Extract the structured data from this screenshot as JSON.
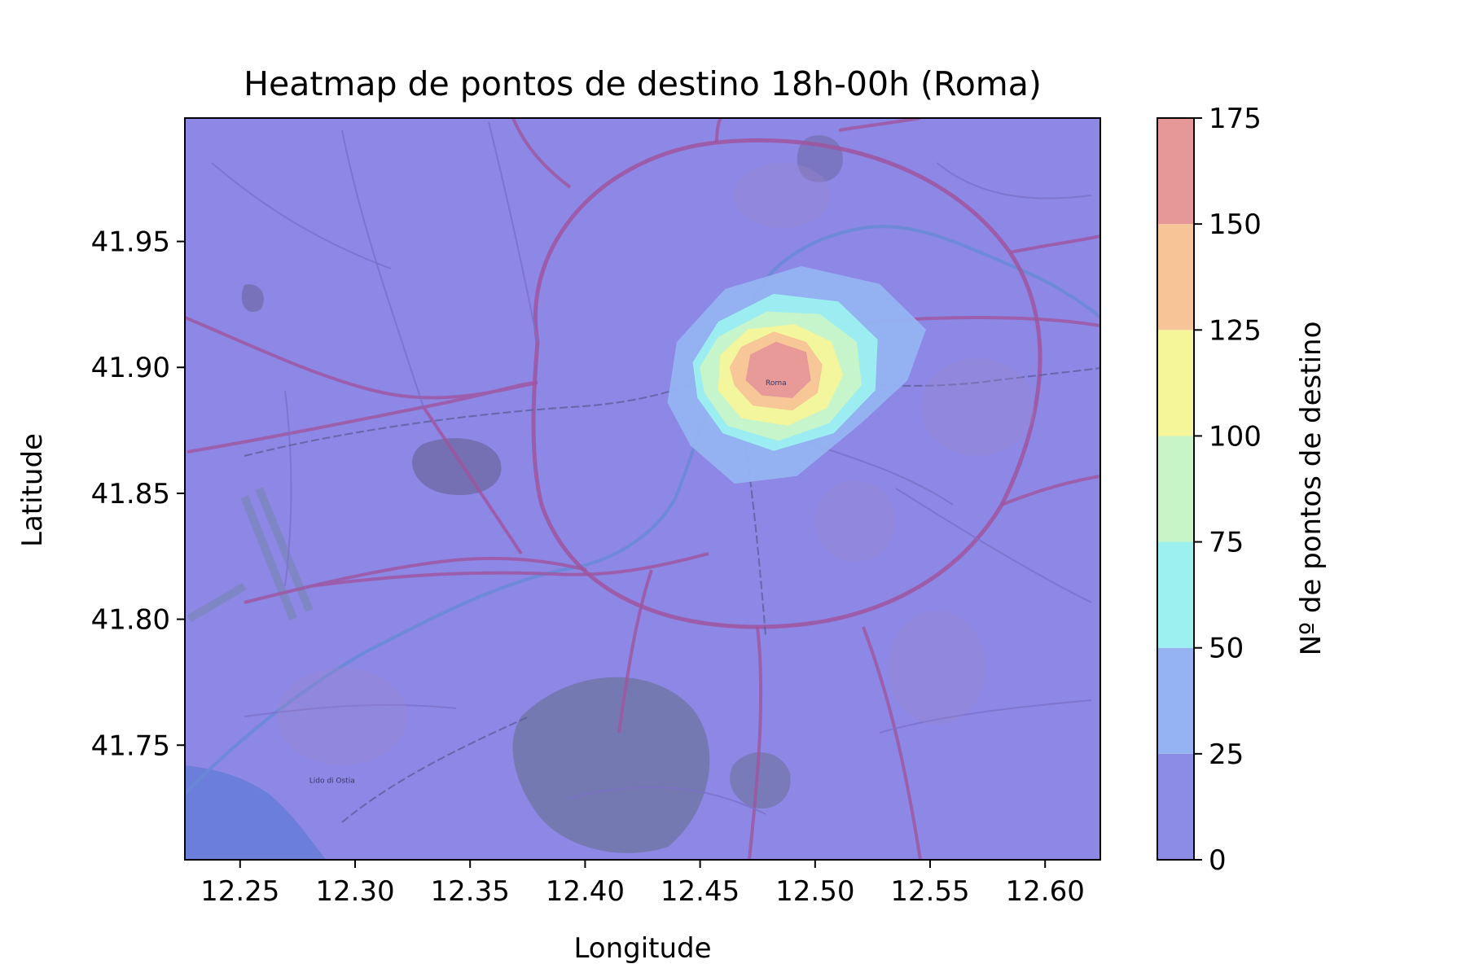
{
  "chart_data": {
    "type": "heatmap",
    "title": "Heatmap de pontos de destino 18h-00h (Roma)",
    "xlabel": "Longitude",
    "ylabel": "Latitude",
    "xlim": [
      12.226,
      12.624
    ],
    "ylim": [
      41.7045,
      41.999
    ],
    "xticks": [
      {
        "value": 12.25,
        "label": "12.25"
      },
      {
        "value": 12.3,
        "label": "12.30"
      },
      {
        "value": 12.35,
        "label": "12.35"
      },
      {
        "value": 12.4,
        "label": "12.40"
      },
      {
        "value": 12.45,
        "label": "12.45"
      },
      {
        "value": 12.5,
        "label": "12.50"
      },
      {
        "value": 12.55,
        "label": "12.55"
      },
      {
        "value": 12.6,
        "label": "12.60"
      }
    ],
    "yticks": [
      {
        "value": 41.75,
        "label": "41.75"
      },
      {
        "value": 41.8,
        "label": "41.80"
      },
      {
        "value": 41.85,
        "label": "41.85"
      },
      {
        "value": 41.9,
        "label": "41.90"
      },
      {
        "value": 41.95,
        "label": "41.95"
      }
    ],
    "grid": false,
    "background": "map",
    "colorbar": {
      "label": "Nº de pontos de destino",
      "levels": [
        0,
        25,
        50,
        75,
        100,
        125,
        150,
        175
      ],
      "tick_labels": [
        "0",
        "25",
        "50",
        "75",
        "100",
        "125",
        "150",
        "175"
      ],
      "colors": [
        "#8c8ce6",
        "#95b3f2",
        "#9cf0f0",
        "#c8f5c8",
        "#f5f59a",
        "#f7c497",
        "#e69898"
      ]
    },
    "contours": [
      {
        "level": 25,
        "color": "#95b3f2",
        "points": [
          [
            12.436,
            41.886
          ],
          [
            12.446,
            41.869
          ],
          [
            12.465,
            41.854
          ],
          [
            12.492,
            41.857
          ],
          [
            12.52,
            41.878
          ],
          [
            12.54,
            41.895
          ],
          [
            12.548,
            41.915
          ],
          [
            12.528,
            41.933
          ],
          [
            12.494,
            41.94
          ],
          [
            12.461,
            41.931
          ],
          [
            12.44,
            41.91
          ]
        ]
      },
      {
        "level": 50,
        "color": "#9cf0f0",
        "points": [
          [
            12.449,
            41.888
          ],
          [
            12.46,
            41.874
          ],
          [
            12.482,
            41.867
          ],
          [
            12.508,
            41.874
          ],
          [
            12.526,
            41.891
          ],
          [
            12.527,
            41.911
          ],
          [
            12.51,
            41.926
          ],
          [
            12.482,
            41.929
          ],
          [
            12.458,
            41.918
          ],
          [
            12.447,
            41.902
          ]
        ]
      },
      {
        "level": 75,
        "color": "#c8f5c8",
        "points": [
          [
            12.452,
            41.89
          ],
          [
            12.462,
            41.877
          ],
          [
            12.484,
            41.871
          ],
          [
            12.506,
            41.878
          ],
          [
            12.52,
            41.893
          ],
          [
            12.518,
            41.91
          ],
          [
            12.502,
            41.921
          ],
          [
            12.479,
            41.922
          ],
          [
            12.458,
            41.912
          ],
          [
            12.45,
            41.9
          ]
        ]
      },
      {
        "level": 100,
        "color": "#f5f59a",
        "points": [
          [
            12.458,
            41.891
          ],
          [
            12.468,
            41.88
          ],
          [
            12.488,
            41.877
          ],
          [
            12.505,
            41.884
          ],
          [
            12.512,
            41.897
          ],
          [
            12.507,
            41.91
          ],
          [
            12.491,
            41.917
          ],
          [
            12.471,
            41.915
          ],
          [
            12.459,
            41.905
          ]
        ]
      },
      {
        "level": 125,
        "color": "#f7c497",
        "points": [
          [
            12.465,
            41.893
          ],
          [
            12.473,
            41.885
          ],
          [
            12.49,
            41.883
          ],
          [
            12.501,
            41.89
          ],
          [
            12.503,
            41.901
          ],
          [
            12.496,
            41.91
          ],
          [
            12.482,
            41.914
          ],
          [
            12.468,
            41.908
          ],
          [
            12.463,
            41.9
          ]
        ]
      },
      {
        "level": 150,
        "color": "#e69898",
        "points": [
          [
            12.47,
            41.895
          ],
          [
            12.477,
            41.889
          ],
          [
            12.49,
            41.888
          ],
          [
            12.498,
            41.895
          ],
          [
            12.496,
            41.906
          ],
          [
            12.483,
            41.91
          ],
          [
            12.472,
            41.905
          ]
        ]
      }
    ],
    "map_labels": [
      {
        "text": "Roma",
        "lon": 12.483,
        "lat": 41.893
      },
      {
        "text": "Lido di Ostia",
        "lon": 12.29,
        "lat": 41.735
      }
    ]
  }
}
